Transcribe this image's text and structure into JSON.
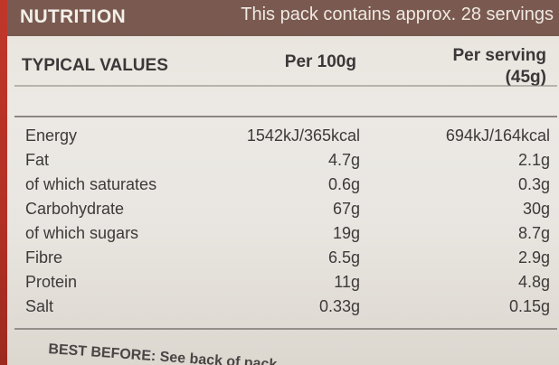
{
  "header": {
    "title": "NUTRITION",
    "servings_note": "This pack contains approx. 28 servings"
  },
  "columns": {
    "typical_values": "TYPICAL VALUES",
    "per_100g": "Per 100g",
    "per_serving_line1": "Per serving",
    "per_serving_line2": "(45g)"
  },
  "rows": [
    {
      "name": "Energy",
      "per_100g": "1542kJ/365kcal",
      "per_serving": "694kJ/164kcal"
    },
    {
      "name": "Fat",
      "per_100g": "4.7g",
      "per_serving": "2.1g"
    },
    {
      "name": "of which saturates",
      "per_100g": "0.6g",
      "per_serving": "0.3g"
    },
    {
      "name": "Carbohydrate",
      "per_100g": "67g",
      "per_serving": "30g"
    },
    {
      "name": "of which sugars",
      "per_100g": "19g",
      "per_serving": "8.7g"
    },
    {
      "name": "Fibre",
      "per_100g": "6.5g",
      "per_serving": "2.9g"
    },
    {
      "name": "Protein",
      "per_100g": "11g",
      "per_serving": "4.8g"
    },
    {
      "name": "Salt",
      "per_100g": "0.33g",
      "per_serving": "0.15g"
    }
  ],
  "footer": {
    "best_before": "BEST BEFORE: See back of pack"
  },
  "colors": {
    "header_band": "#7a5a50",
    "pack_background": "#ece9e4",
    "left_red_strip": "#c0372a",
    "text": "#3c3a39"
  }
}
